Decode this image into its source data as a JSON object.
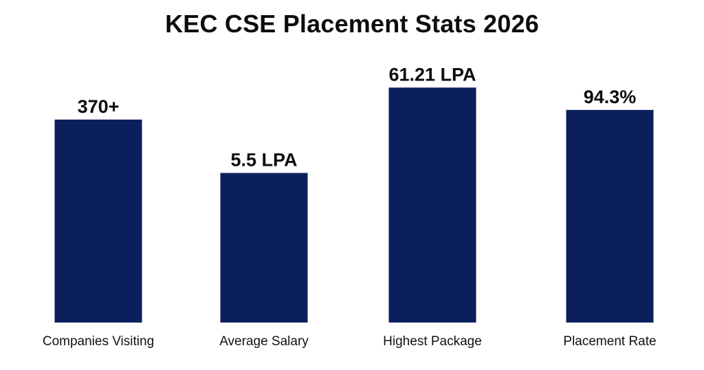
{
  "chart_data": {
    "type": "bar",
    "title": "KEC CSE Placement Stats 2026",
    "categories": [
      "Companies Visiting",
      "Average Salary",
      "Highest Package",
      "Placement Rate"
    ],
    "data_labels": [
      "370+",
      "5.5 LPA",
      "61.21 LPA",
      "94.3%"
    ],
    "relative_heights": [
      0.863,
      0.636,
      0.999,
      0.904
    ],
    "bar_color": "#0b1f5c",
    "grid": false,
    "legend": "none"
  }
}
